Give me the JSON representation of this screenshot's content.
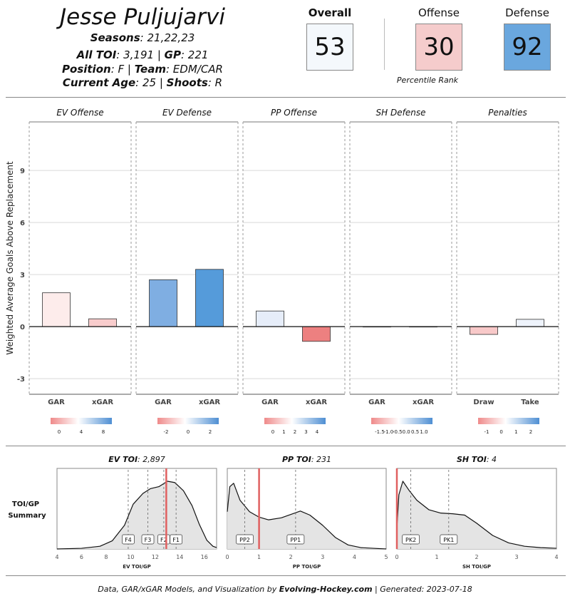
{
  "header": {
    "player_name": "Jesse Puljujarvi",
    "seasons_label": "Seasons",
    "seasons_value": ": 21,22,23",
    "toi_label": "All TOI",
    "toi_value": ": 3,191 | ",
    "gp_label": "GP",
    "gp_value": ": 221",
    "position_label": "Position",
    "position_value": ": F | ",
    "team_label": "Team",
    "team_value": ": EDM/CAR",
    "age_label": "Current Age",
    "age_value": ": 25 | ",
    "shoots_label": "Shoots",
    "shoots_value": ": R"
  },
  "ratings": {
    "overall_label": "Overall",
    "overall_value": "53",
    "offense_label": "Offense",
    "offense_value": "30",
    "defense_label": "Defense",
    "defense_value": "92",
    "percentile_caption": "Percentile Rank",
    "overall_color": "#f4f8fc",
    "offense_color": "#f5cccc",
    "defense_color": "#6aa7de"
  },
  "chart_data": [
    {
      "type": "bar",
      "ylabel": "Weighted Average Goals Above Replacement",
      "ylim": [
        -3.9,
        11.8
      ],
      "yticks": [
        -3,
        0,
        3,
        6,
        9
      ],
      "grid": true,
      "panels": [
        {
          "title": "EV Offense",
          "categories": [
            "GAR",
            "xGAR"
          ],
          "values": [
            1.95,
            0.45
          ],
          "colors": [
            "#fdeceb",
            "#f8cccc"
          ],
          "legend_ticks": [
            "0",
            "4",
            "8"
          ]
        },
        {
          "title": "EV Defense",
          "categories": [
            "GAR",
            "xGAR"
          ],
          "values": [
            2.7,
            3.3
          ],
          "colors": [
            "#7faee2",
            "#559bda"
          ],
          "legend_ticks": [
            "-2",
            "0",
            "2"
          ]
        },
        {
          "title": "PP Offense",
          "categories": [
            "GAR",
            "xGAR"
          ],
          "values": [
            0.9,
            -0.85
          ],
          "colors": [
            "#e6edf9",
            "#ed8080"
          ],
          "legend_ticks": [
            "0",
            "1",
            "2",
            "3",
            "4"
          ]
        },
        {
          "title": "SH Defense",
          "categories": [
            "GAR",
            "xGAR"
          ],
          "values": [
            0.0,
            0.0
          ],
          "colors": [
            "#f0f0f0",
            "#f0f0f0"
          ],
          "legend_ticks": [
            "-1.5",
            "-1.0",
            "-0.5",
            "0.0",
            "0.5",
            "1.0"
          ]
        },
        {
          "title": "Penalties",
          "categories": [
            "Draw",
            "Take"
          ],
          "values": [
            -0.45,
            0.42
          ],
          "colors": [
            "#f8c9c9",
            "#eef3fb"
          ],
          "legend_ticks": [
            "-1",
            "0",
            "1",
            "2"
          ]
        }
      ]
    },
    {
      "type": "area",
      "section_label": "TOI/GP Summary",
      "panels": [
        {
          "title_label": "EV TOI",
          "title_value": ": 2,897",
          "xlabel": "EV TOI/GP",
          "xlim": [
            4,
            17
          ],
          "xticks": [
            4,
            6,
            8,
            10,
            12,
            14,
            16
          ],
          "density_x": [
            4,
            6,
            7.5,
            8.5,
            9.5,
            10.2,
            11,
            11.6,
            12.3,
            13,
            13.6,
            14.3,
            15,
            15.6,
            16.2,
            16.7,
            17
          ],
          "density_y": [
            0.0,
            0.01,
            0.04,
            0.12,
            0.35,
            0.66,
            0.82,
            0.89,
            0.92,
            1.0,
            0.98,
            0.86,
            0.64,
            0.36,
            0.13,
            0.04,
            0.02
          ],
          "markers": [
            {
              "label": "F4",
              "x": 9.8
            },
            {
              "label": "F3",
              "x": 11.4
            },
            {
              "label": "F2",
              "x": 12.7
            },
            {
              "label": "F1",
              "x": 13.7
            }
          ],
          "player_value": 12.9
        },
        {
          "title_label": "PP TOI",
          "title_value": ": 231",
          "xlabel": "PP TOI/GP",
          "xlim": [
            0,
            5
          ],
          "xticks": [
            0,
            1,
            2,
            3,
            4,
            5
          ],
          "density_x": [
            0,
            0.08,
            0.2,
            0.4,
            0.7,
            1.0,
            1.3,
            1.7,
            2.0,
            2.3,
            2.6,
            3.0,
            3.4,
            3.8,
            4.2,
            4.6,
            5
          ],
          "density_y": [
            0.55,
            0.92,
            0.97,
            0.72,
            0.55,
            0.47,
            0.43,
            0.46,
            0.51,
            0.56,
            0.5,
            0.35,
            0.17,
            0.06,
            0.02,
            0.01,
            0.0
          ],
          "markers": [
            {
              "label": "PP2",
              "x": 0.55
            },
            {
              "label": "PP1",
              "x": 2.15
            }
          ],
          "player_value": 1.0
        },
        {
          "title_label": "SH TOI",
          "title_value": ": 4",
          "xlabel": "SH TOI/GP",
          "xlim": [
            0,
            4
          ],
          "xticks": [
            0,
            1,
            2,
            3,
            4
          ],
          "density_x": [
            0,
            0.05,
            0.15,
            0.3,
            0.5,
            0.8,
            1.1,
            1.4,
            1.7,
            2.0,
            2.4,
            2.8,
            3.2,
            3.6,
            4
          ],
          "density_y": [
            0.3,
            0.8,
            1.0,
            0.87,
            0.72,
            0.58,
            0.53,
            0.52,
            0.5,
            0.38,
            0.2,
            0.09,
            0.04,
            0.02,
            0.01
          ],
          "markers": [
            {
              "label": "PK2",
              "x": 0.35
            },
            {
              "label": "PK1",
              "x": 1.3
            }
          ],
          "player_value": 0.0
        }
      ]
    }
  ],
  "footer": {
    "prefix": "Data, GAR/xGAR Models, and Visualization by ",
    "brand": "Evolving-Hockey.com",
    "suffix": " | Generated: 2023-07-18"
  }
}
